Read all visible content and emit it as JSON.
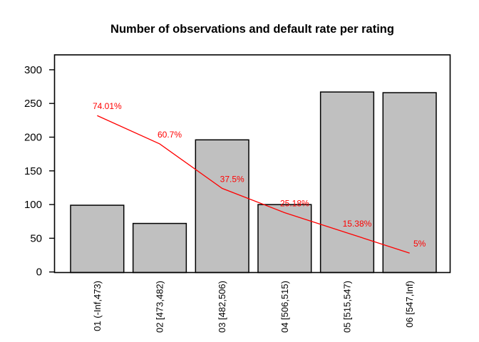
{
  "title": "Number of observations and default rate per rating",
  "chart_data": {
    "type": "bar",
    "title": "Number of observations and default rate per rating",
    "categories": [
      "01 (-Inf,473)",
      "02 [473,482)",
      "03 [482,506)",
      "04 [506,515)",
      "05 [515,547)",
      "06 [547,Inf)"
    ],
    "series": [
      {
        "name": "Number of observations",
        "type": "bar",
        "values": [
          99,
          72,
          196,
          100,
          267,
          266
        ]
      },
      {
        "name": "Default rate",
        "type": "line",
        "values_percent": [
          74.01,
          60.7,
          37.5,
          25.18,
          15.38,
          5
        ],
        "labels": [
          "74.01%",
          "60.7%",
          "37.5%",
          "25.18%",
          "15.38%",
          "5%"
        ],
        "plotted_axis_values": [
          232,
          190,
          124,
          88,
          58,
          28
        ]
      }
    ],
    "xlabel": "",
    "ylabel": "",
    "ylim": [
      0,
      300
    ],
    "yticks": [
      0,
      50,
      100,
      150,
      200,
      250,
      300
    ],
    "grid": false,
    "legend": false,
    "colors": {
      "bar_fill": "#c0c0c0",
      "bar_border": "#000000",
      "line": "#ff0000",
      "label": "#ff0000",
      "box": "#000000",
      "background": "#ffffff"
    }
  }
}
